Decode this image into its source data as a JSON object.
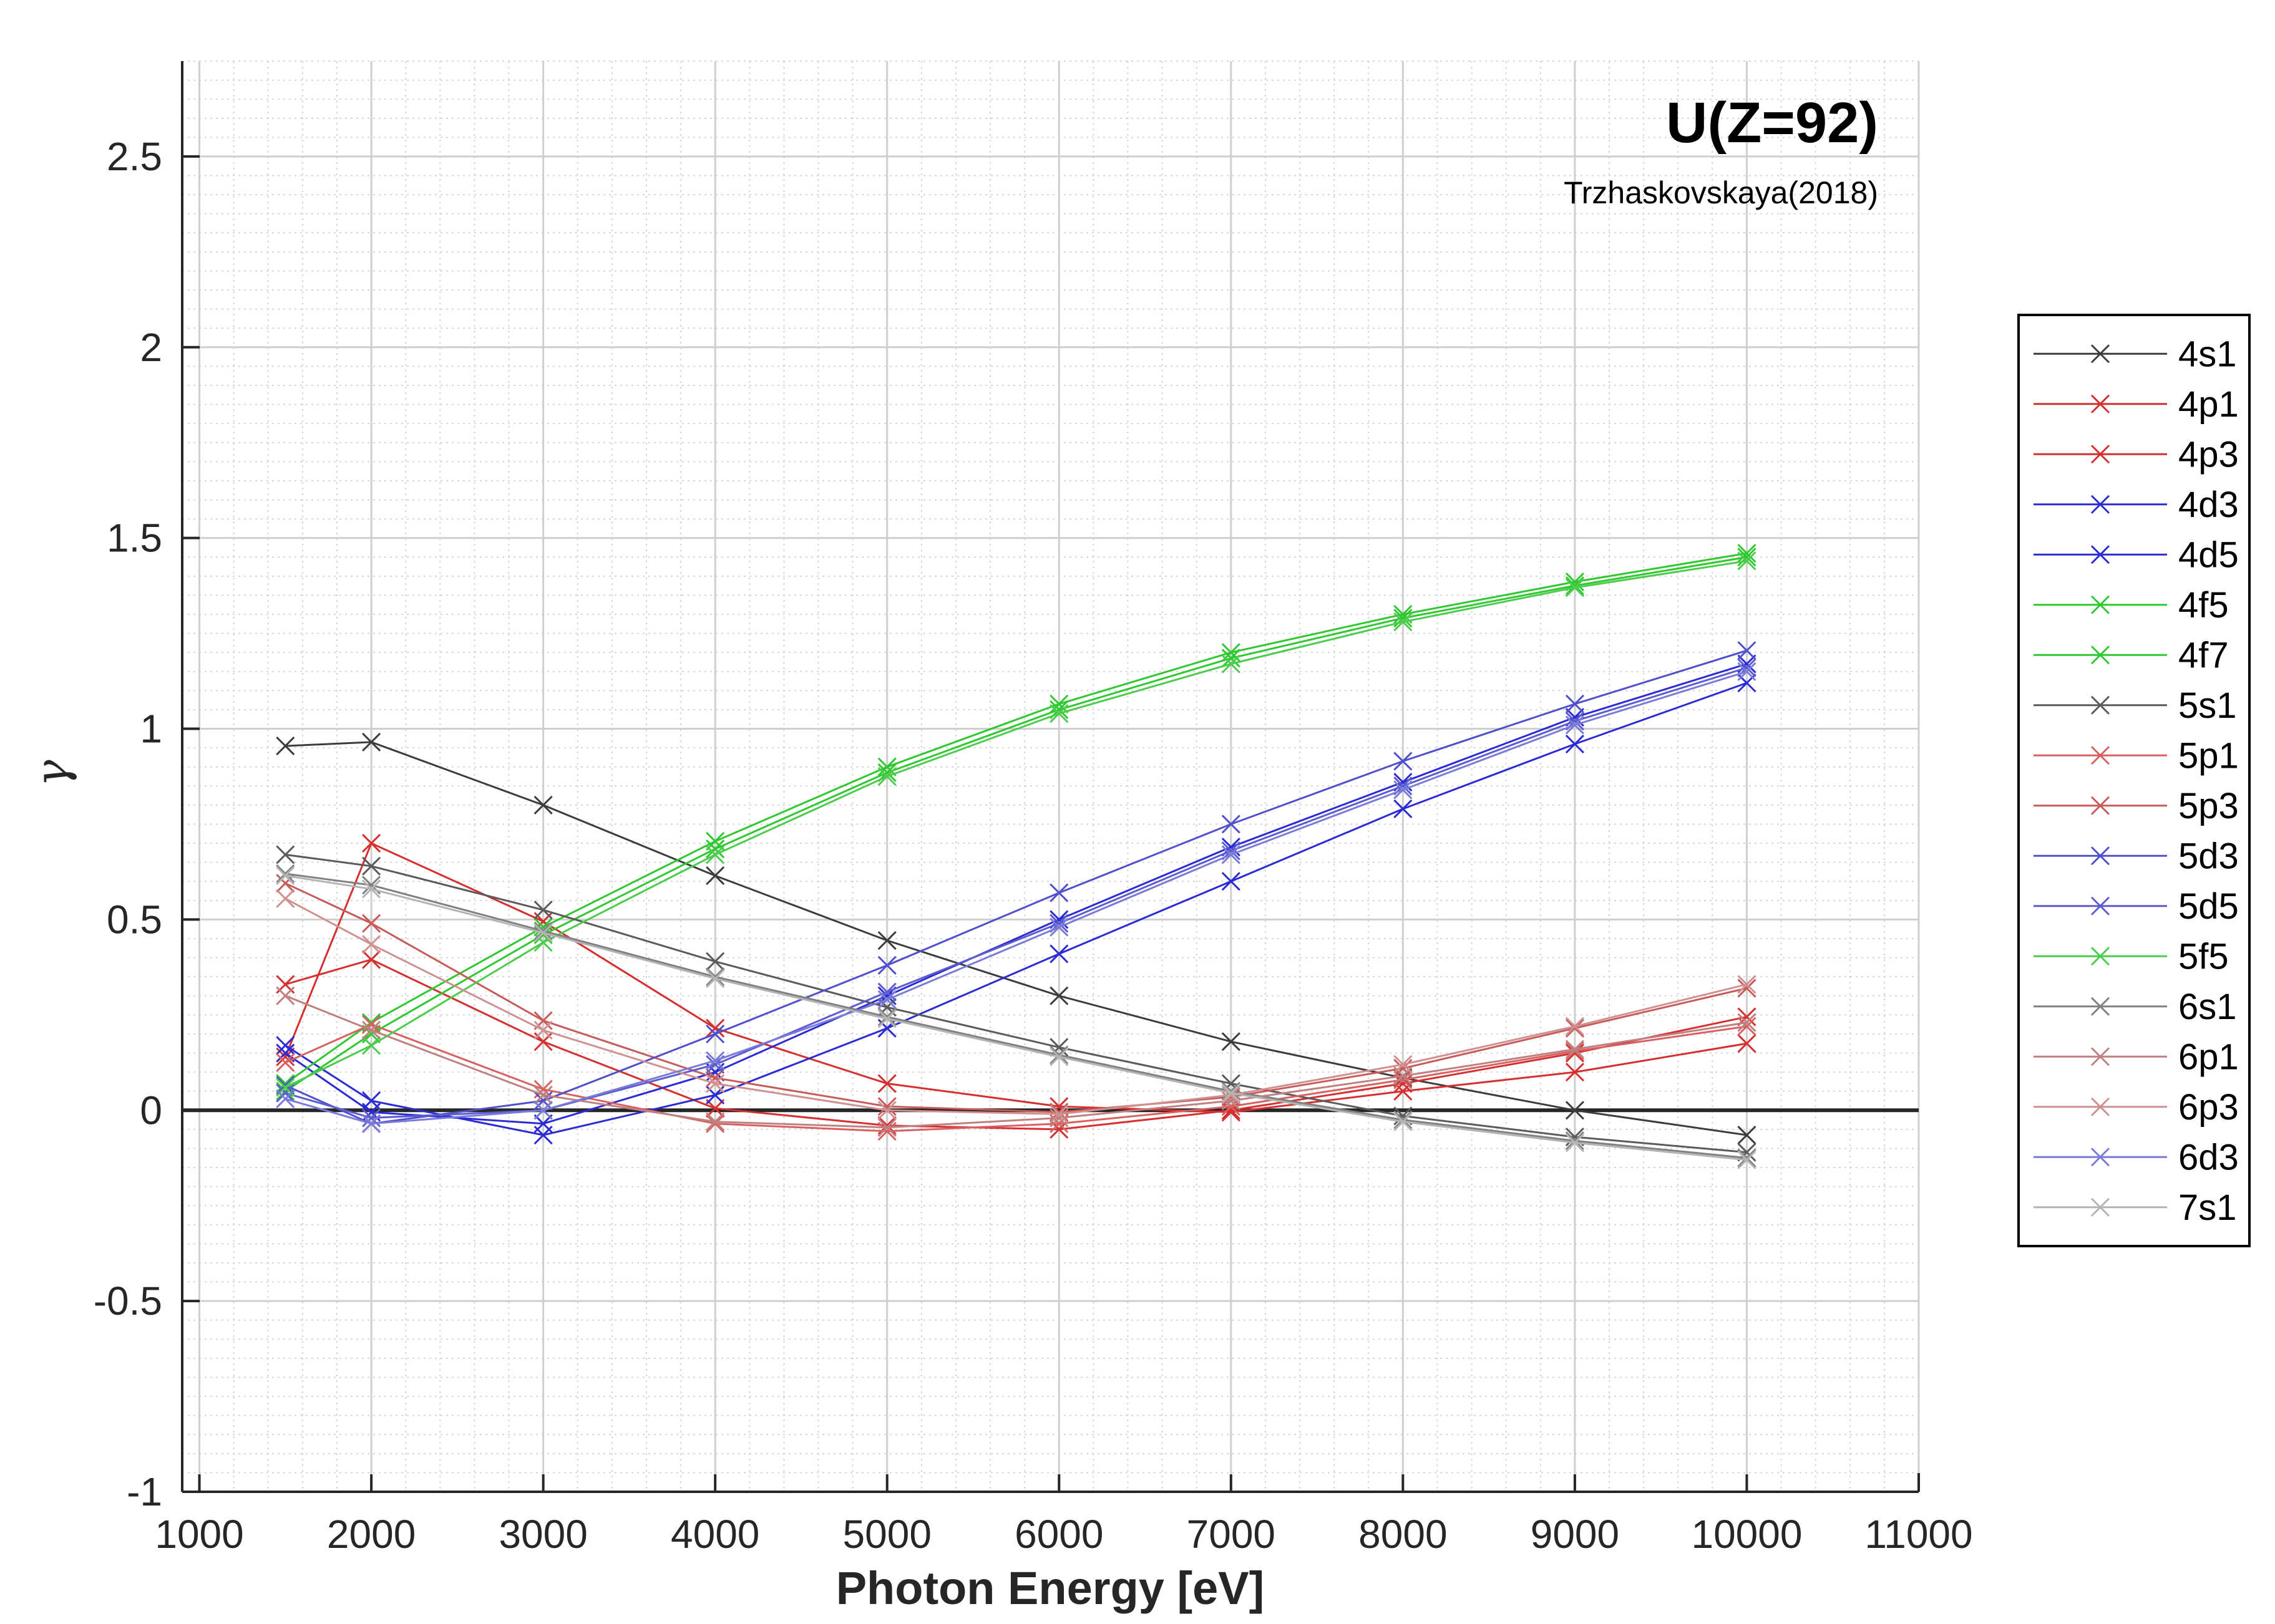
{
  "chart_data": {
    "type": "line",
    "title": "U(Z=92)",
    "subtitle": "Trzhaskovskaya(2018)",
    "xlabel": "Photon Energy [eV]",
    "ylabel": "γ",
    "xlim": [
      900,
      11000
    ],
    "ylim": [
      -1,
      2.75
    ],
    "xticks": [
      1000,
      2000,
      3000,
      4000,
      5000,
      6000,
      7000,
      8000,
      9000,
      10000,
      11000
    ],
    "yticks": [
      -1,
      -0.5,
      0,
      0.5,
      1,
      1.5,
      2,
      2.5
    ],
    "xtick_labels": [
      "1000",
      "2000",
      "3000",
      "4000",
      "5000",
      "6000",
      "7000",
      "8000",
      "9000",
      "10000",
      "11000"
    ],
    "ytick_labels": [
      "-1",
      "-0.5",
      "0",
      "0.5",
      "1",
      "1.5",
      "2",
      "2.5"
    ],
    "grid": true,
    "minor_grid": true,
    "zero_line": true,
    "legend_position": "outside-right",
    "marker": "x",
    "x": [
      1500,
      2000,
      3000,
      4000,
      5000,
      6000,
      7000,
      8000,
      9000,
      10000
    ],
    "series": [
      {
        "name": "4s1",
        "color": "#3c3c3c",
        "values": [
          0.955,
          0.965,
          0.8,
          0.615,
          0.445,
          0.3,
          0.18,
          0.085,
          0.0,
          -0.065
        ]
      },
      {
        "name": "4p1",
        "color": "#d62f2f",
        "values": [
          0.14,
          0.7,
          0.495,
          0.215,
          0.07,
          0.01,
          -0.005,
          0.05,
          0.1,
          0.175
        ]
      },
      {
        "name": "4p3",
        "color": "#d62f2f",
        "values": [
          0.33,
          0.395,
          0.18,
          0.005,
          -0.04,
          -0.05,
          0.0,
          0.07,
          0.15,
          0.245
        ]
      },
      {
        "name": "4d3",
        "color": "#2b2bd6",
        "values": [
          0.17,
          0.025,
          -0.065,
          0.04,
          0.215,
          0.41,
          0.6,
          0.79,
          0.96,
          1.12
        ]
      },
      {
        "name": "4d5",
        "color": "#2b2bd6",
        "values": [
          0.15,
          -0.005,
          -0.035,
          0.1,
          0.3,
          0.5,
          0.69,
          0.86,
          1.03,
          1.17
        ]
      },
      {
        "name": "4f5",
        "color": "#30c830",
        "values": [
          0.07,
          0.23,
          0.48,
          0.705,
          0.9,
          1.065,
          1.2,
          1.3,
          1.385,
          1.46
        ]
      },
      {
        "name": "4f7",
        "color": "#30c830",
        "values": [
          0.05,
          0.2,
          0.46,
          0.685,
          0.885,
          1.05,
          1.185,
          1.29,
          1.375,
          1.45
        ]
      },
      {
        "name": "5s1",
        "color": "#5a5a5a",
        "values": [
          0.67,
          0.64,
          0.525,
          0.39,
          0.27,
          0.165,
          0.07,
          -0.015,
          -0.07,
          -0.11
        ]
      },
      {
        "name": "5p1",
        "color": "#d86060",
        "values": [
          0.125,
          0.225,
          0.055,
          -0.035,
          -0.055,
          -0.035,
          0.01,
          0.08,
          0.155,
          0.22
        ]
      },
      {
        "name": "5p3",
        "color": "#c85a5a",
        "values": [
          0.595,
          0.49,
          0.235,
          0.085,
          0.01,
          -0.005,
          0.035,
          0.11,
          0.215,
          0.32
        ]
      },
      {
        "name": "5d3",
        "color": "#5050cc",
        "values": [
          0.065,
          -0.035,
          0.025,
          0.2,
          0.38,
          0.57,
          0.75,
          0.915,
          1.065,
          1.205
        ]
      },
      {
        "name": "5d5",
        "color": "#5c5cd0",
        "values": [
          0.045,
          -0.02,
          0.0,
          0.12,
          0.31,
          0.49,
          0.68,
          0.85,
          1.02,
          1.16
        ]
      },
      {
        "name": "5f5",
        "color": "#4ccc4c",
        "values": [
          0.06,
          0.17,
          0.44,
          0.67,
          0.875,
          1.04,
          1.17,
          1.28,
          1.37,
          1.44
        ]
      },
      {
        "name": "6s1",
        "color": "#808080",
        "values": [
          0.62,
          0.59,
          0.47,
          0.35,
          0.245,
          0.145,
          0.05,
          -0.025,
          -0.08,
          -0.125
        ]
      },
      {
        "name": "6p1",
        "color": "#c08080",
        "values": [
          0.3,
          0.21,
          0.04,
          -0.03,
          -0.045,
          -0.02,
          0.025,
          0.09,
          0.16,
          0.23
        ]
      },
      {
        "name": "6p3",
        "color": "#d09090",
        "values": [
          0.555,
          0.435,
          0.21,
          0.07,
          0.0,
          -0.01,
          0.04,
          0.12,
          0.22,
          0.33
        ]
      },
      {
        "name": "6d3",
        "color": "#7a7ad8",
        "values": [
          0.03,
          -0.035,
          0.0,
          0.13,
          0.29,
          0.48,
          0.67,
          0.84,
          1.01,
          1.15
        ]
      },
      {
        "name": "7s1",
        "color": "#b4b4b4",
        "values": [
          0.615,
          0.58,
          0.465,
          0.345,
          0.24,
          0.14,
          0.045,
          -0.03,
          -0.085,
          -0.13
        ]
      }
    ]
  }
}
